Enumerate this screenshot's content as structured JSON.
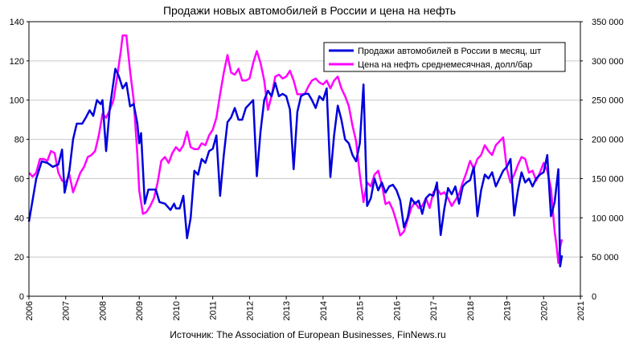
{
  "colors": {
    "sales": "#0000dd",
    "oil": "#ff00ff",
    "axis": "#000000",
    "grid": "#c8c8c8"
  },
  "chart_data": {
    "type": "line",
    "title": "Продажи новых автомобилей в России и цена на нефть",
    "source": "Источник: The Association of European Businesses, FinNews.ru",
    "x_ticks": [
      "2006",
      "2007",
      "2008",
      "2009",
      "2010",
      "2011",
      "2012",
      "2013",
      "2014",
      "2015",
      "2016",
      "2017",
      "2018",
      "2019",
      "2020",
      "2021"
    ],
    "y_left_ticks": [
      "0",
      "20",
      "40",
      "60",
      "80",
      "100",
      "120",
      "140"
    ],
    "y_right_ticks": [
      "0",
      "50 000",
      "100 000",
      "150 000",
      "200 000",
      "250 000",
      "300 000",
      "350 000"
    ],
    "xlim": [
      2006,
      2021
    ],
    "ylim_left": [
      0,
      140
    ],
    "ylim_right": [
      0,
      350000
    ],
    "grid": true,
    "legend_position": "top-right",
    "series": [
      {
        "name": "Продажи автомобилей в России в месяц, шт",
        "axis": "right",
        "color": "#0000dd",
        "points": [
          [
            2006.0,
            95000
          ],
          [
            2006.2,
            150000
          ],
          [
            2006.35,
            172000
          ],
          [
            2006.5,
            170000
          ],
          [
            2006.65,
            165000
          ],
          [
            2006.8,
            168000
          ],
          [
            2006.9,
            187000
          ],
          [
            2006.97,
            132000
          ],
          [
            2007.1,
            160000
          ],
          [
            2007.2,
            200000
          ],
          [
            2007.3,
            220000
          ],
          [
            2007.45,
            220000
          ],
          [
            2007.55,
            228000
          ],
          [
            2007.65,
            237000
          ],
          [
            2007.75,
            230000
          ],
          [
            2007.85,
            250000
          ],
          [
            2007.95,
            245000
          ],
          [
            2008.0,
            250000
          ],
          [
            2008.1,
            185000
          ],
          [
            2008.2,
            240000
          ],
          [
            2008.35,
            290000
          ],
          [
            2008.45,
            280000
          ],
          [
            2008.55,
            265000
          ],
          [
            2008.65,
            272000
          ],
          [
            2008.75,
            242000
          ],
          [
            2008.85,
            245000
          ],
          [
            2008.95,
            220000
          ],
          [
            2009.0,
            195000
          ],
          [
            2009.05,
            208000
          ],
          [
            2009.15,
            118000
          ],
          [
            2009.25,
            136000
          ],
          [
            2009.35,
            136000
          ],
          [
            2009.45,
            136000
          ],
          [
            2009.55,
            120000
          ],
          [
            2009.7,
            118000
          ],
          [
            2009.85,
            110000
          ],
          [
            2009.95,
            118000
          ],
          [
            2010.0,
            112000
          ],
          [
            2010.1,
            112000
          ],
          [
            2010.2,
            128000
          ],
          [
            2010.3,
            74000
          ],
          [
            2010.4,
            100000
          ],
          [
            2010.5,
            160000
          ],
          [
            2010.6,
            155000
          ],
          [
            2010.7,
            175000
          ],
          [
            2010.8,
            170000
          ],
          [
            2010.9,
            185000
          ],
          [
            2011.0,
            188000
          ],
          [
            2011.1,
            205000
          ],
          [
            2011.2,
            128000
          ],
          [
            2011.3,
            180000
          ],
          [
            2011.4,
            222000
          ],
          [
            2011.5,
            228000
          ],
          [
            2011.6,
            240000
          ],
          [
            2011.7,
            225000
          ],
          [
            2011.8,
            225000
          ],
          [
            2011.9,
            240000
          ],
          [
            2012.0,
            245000
          ],
          [
            2012.1,
            250000
          ],
          [
            2012.2,
            153000
          ],
          [
            2012.3,
            210000
          ],
          [
            2012.4,
            250000
          ],
          [
            2012.5,
            262000
          ],
          [
            2012.6,
            255000
          ],
          [
            2012.7,
            272000
          ],
          [
            2012.8,
            255000
          ],
          [
            2012.9,
            258000
          ],
          [
            2013.0,
            255000
          ],
          [
            2013.1,
            238000
          ],
          [
            2013.2,
            162000
          ],
          [
            2013.3,
            235000
          ],
          [
            2013.4,
            255000
          ],
          [
            2013.5,
            258000
          ],
          [
            2013.6,
            258000
          ],
          [
            2013.7,
            250000
          ],
          [
            2013.8,
            240000
          ],
          [
            2013.9,
            255000
          ],
          [
            2014.0,
            250000
          ],
          [
            2014.1,
            265000
          ],
          [
            2014.2,
            152000
          ],
          [
            2014.3,
            205000
          ],
          [
            2014.4,
            243000
          ],
          [
            2014.5,
            225000
          ],
          [
            2014.6,
            200000
          ],
          [
            2014.7,
            195000
          ],
          [
            2014.8,
            180000
          ],
          [
            2014.9,
            172000
          ],
          [
            2015.0,
            195000
          ],
          [
            2015.1,
            270000
          ],
          [
            2015.2,
            115000
          ],
          [
            2015.3,
            125000
          ],
          [
            2015.4,
            150000
          ],
          [
            2015.5,
            135000
          ],
          [
            2015.6,
            145000
          ],
          [
            2015.7,
            132000
          ],
          [
            2015.8,
            140000
          ],
          [
            2015.9,
            142000
          ],
          [
            2016.0,
            135000
          ],
          [
            2016.1,
            122000
          ],
          [
            2016.2,
            88000
          ],
          [
            2016.3,
            100000
          ],
          [
            2016.4,
            125000
          ],
          [
            2016.5,
            118000
          ],
          [
            2016.6,
            122000
          ],
          [
            2016.7,
            105000
          ],
          [
            2016.8,
            125000
          ],
          [
            2016.9,
            130000
          ],
          [
            2017.0,
            128000
          ],
          [
            2017.1,
            145000
          ],
          [
            2017.2,
            78000
          ],
          [
            2017.3,
            112000
          ],
          [
            2017.4,
            138000
          ],
          [
            2017.5,
            130000
          ],
          [
            2017.6,
            140000
          ],
          [
            2017.7,
            118000
          ],
          [
            2017.8,
            140000
          ],
          [
            2017.9,
            145000
          ],
          [
            2018.0,
            148000
          ],
          [
            2018.1,
            165000
          ],
          [
            2018.2,
            102000
          ],
          [
            2018.3,
            135000
          ],
          [
            2018.4,
            155000
          ],
          [
            2018.5,
            150000
          ],
          [
            2018.6,
            158000
          ],
          [
            2018.7,
            140000
          ],
          [
            2018.8,
            150000
          ],
          [
            2018.9,
            160000
          ],
          [
            2019.0,
            165000
          ],
          [
            2019.1,
            175000
          ],
          [
            2019.2,
            103000
          ],
          [
            2019.3,
            135000
          ],
          [
            2019.4,
            158000
          ],
          [
            2019.5,
            145000
          ],
          [
            2019.6,
            150000
          ],
          [
            2019.7,
            140000
          ],
          [
            2019.8,
            150000
          ],
          [
            2019.9,
            155000
          ],
          [
            2020.0,
            158000
          ],
          [
            2020.1,
            180000
          ],
          [
            2020.2,
            102000
          ],
          [
            2020.3,
            120000
          ],
          [
            2020.4,
            162000
          ],
          [
            2020.45,
            38000
          ],
          [
            2020.5,
            52000
          ]
        ]
      },
      {
        "name": "Цена на нефть среднемесячная, долл/бар",
        "axis": "left",
        "color": "#ff00ff",
        "points": [
          [
            2006.0,
            63
          ],
          [
            2006.1,
            61
          ],
          [
            2006.2,
            63
          ],
          [
            2006.3,
            70
          ],
          [
            2006.4,
            70
          ],
          [
            2006.5,
            69
          ],
          [
            2006.6,
            74
          ],
          [
            2006.7,
            73
          ],
          [
            2006.8,
            63
          ],
          [
            2006.9,
            59
          ],
          [
            2007.0,
            58
          ],
          [
            2007.1,
            62
          ],
          [
            2007.2,
            53
          ],
          [
            2007.3,
            58
          ],
          [
            2007.4,
            63
          ],
          [
            2007.5,
            66
          ],
          [
            2007.6,
            71
          ],
          [
            2007.7,
            72
          ],
          [
            2007.8,
            74
          ],
          [
            2007.9,
            82
          ],
          [
            2008.0,
            93
          ],
          [
            2008.1,
            91
          ],
          [
            2008.2,
            95
          ],
          [
            2008.3,
            100
          ],
          [
            2008.4,
            112
          ],
          [
            2008.5,
            125
          ],
          [
            2008.55,
            133
          ],
          [
            2008.65,
            133
          ],
          [
            2008.75,
            115
          ],
          [
            2008.85,
            100
          ],
          [
            2008.95,
            72
          ],
          [
            2009.0,
            54
          ],
          [
            2009.1,
            42
          ],
          [
            2009.2,
            43
          ],
          [
            2009.3,
            46
          ],
          [
            2009.4,
            50
          ],
          [
            2009.5,
            58
          ],
          [
            2009.6,
            69
          ],
          [
            2009.7,
            71
          ],
          [
            2009.8,
            68
          ],
          [
            2009.9,
            73
          ],
          [
            2010.0,
            76
          ],
          [
            2010.1,
            74
          ],
          [
            2010.2,
            77
          ],
          [
            2010.3,
            84
          ],
          [
            2010.4,
            76
          ],
          [
            2010.5,
            75
          ],
          [
            2010.6,
            75
          ],
          [
            2010.7,
            78
          ],
          [
            2010.8,
            77
          ],
          [
            2010.9,
            82
          ],
          [
            2011.0,
            85
          ],
          [
            2011.1,
            91
          ],
          [
            2011.2,
            103
          ],
          [
            2011.3,
            114
          ],
          [
            2011.4,
            123
          ],
          [
            2011.5,
            114
          ],
          [
            2011.6,
            113
          ],
          [
            2011.7,
            116
          ],
          [
            2011.8,
            110
          ],
          [
            2011.9,
            110
          ],
          [
            2012.0,
            111
          ],
          [
            2012.1,
            119
          ],
          [
            2012.2,
            125
          ],
          [
            2012.3,
            119
          ],
          [
            2012.4,
            110
          ],
          [
            2012.5,
            95
          ],
          [
            2012.6,
            102
          ],
          [
            2012.7,
            112
          ],
          [
            2012.8,
            113
          ],
          [
            2012.9,
            111
          ],
          [
            2013.0,
            112
          ],
          [
            2013.1,
            115
          ],
          [
            2013.2,
            110
          ],
          [
            2013.3,
            103
          ],
          [
            2013.4,
            103
          ],
          [
            2013.5,
            103
          ],
          [
            2013.6,
            107
          ],
          [
            2013.7,
            110
          ],
          [
            2013.8,
            111
          ],
          [
            2013.9,
            109
          ],
          [
            2014.0,
            108
          ],
          [
            2014.1,
            110
          ],
          [
            2014.2,
            106
          ],
          [
            2014.3,
            110
          ],
          [
            2014.4,
            112
          ],
          [
            2014.5,
            106
          ],
          [
            2014.6,
            102
          ],
          [
            2014.7,
            97
          ],
          [
            2014.8,
            87
          ],
          [
            2014.9,
            79
          ],
          [
            2015.0,
            62
          ],
          [
            2015.1,
            48
          ],
          [
            2015.2,
            58
          ],
          [
            2015.3,
            56
          ],
          [
            2015.4,
            62
          ],
          [
            2015.5,
            64
          ],
          [
            2015.6,
            57
          ],
          [
            2015.7,
            47
          ],
          [
            2015.8,
            48
          ],
          [
            2015.9,
            44
          ],
          [
            2016.0,
            38
          ],
          [
            2016.1,
            31
          ],
          [
            2016.2,
            33
          ],
          [
            2016.3,
            39
          ],
          [
            2016.4,
            45
          ],
          [
            2016.5,
            48
          ],
          [
            2016.6,
            45
          ],
          [
            2016.7,
            46
          ],
          [
            2016.8,
            50
          ],
          [
            2016.9,
            45
          ],
          [
            2017.0,
            53
          ],
          [
            2017.1,
            55
          ],
          [
            2017.2,
            52
          ],
          [
            2017.3,
            53
          ],
          [
            2017.4,
            50
          ],
          [
            2017.5,
            46
          ],
          [
            2017.6,
            49
          ],
          [
            2017.7,
            52
          ],
          [
            2017.8,
            58
          ],
          [
            2017.9,
            63
          ],
          [
            2018.0,
            69
          ],
          [
            2018.1,
            65
          ],
          [
            2018.2,
            70
          ],
          [
            2018.3,
            72
          ],
          [
            2018.4,
            77
          ],
          [
            2018.5,
            74
          ],
          [
            2018.6,
            72
          ],
          [
            2018.7,
            77
          ],
          [
            2018.8,
            79
          ],
          [
            2018.9,
            81
          ],
          [
            2019.0,
            65
          ],
          [
            2019.1,
            58
          ],
          [
            2019.2,
            62
          ],
          [
            2019.3,
            67
          ],
          [
            2019.4,
            71
          ],
          [
            2019.5,
            70
          ],
          [
            2019.6,
            63
          ],
          [
            2019.7,
            64
          ],
          [
            2019.8,
            59
          ],
          [
            2019.9,
            63
          ],
          [
            2020.0,
            68
          ],
          [
            2020.1,
            64
          ],
          [
            2020.2,
            55
          ],
          [
            2020.3,
            33
          ],
          [
            2020.35,
            26
          ],
          [
            2020.4,
            17
          ],
          [
            2020.45,
            25
          ],
          [
            2020.5,
            29
          ]
        ]
      }
    ]
  }
}
